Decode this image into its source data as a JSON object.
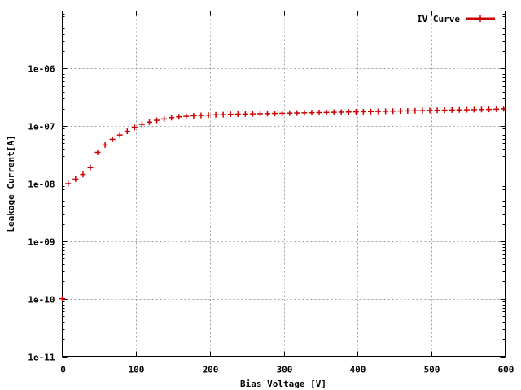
{
  "chart_data": {
    "type": "scatter",
    "xlabel": "Bias Voltage [V]",
    "ylabel": "Leakage Current[A]",
    "xlim": [
      0,
      600
    ],
    "ylim": [
      1e-11,
      1e-05
    ],
    "yscale": "log",
    "grid": true,
    "legend_position": "top-right",
    "x_ticks": [
      0,
      100,
      200,
      300,
      400,
      500,
      600
    ],
    "x_tick_labels": [
      "0",
      "100",
      "200",
      "300",
      "400",
      "500",
      "600"
    ],
    "y_ticks": [
      1e-11,
      1e-10,
      1e-09,
      1e-08,
      1e-07,
      1e-06
    ],
    "y_tick_labels": [
      "1e-11",
      "1e-10",
      "1e-09",
      "1e-08",
      "1e-07",
      "1e-06"
    ],
    "series": [
      {
        "name": "IV Curve",
        "color": "#cc0000",
        "marker": "plus",
        "x": [
          0,
          8,
          18,
          28,
          38,
          48,
          58,
          68,
          78,
          88,
          98,
          108,
          118,
          128,
          138,
          148,
          158,
          168,
          178,
          188,
          198,
          208,
          218,
          228,
          238,
          248,
          258,
          268,
          278,
          288,
          298,
          308,
          318,
          328,
          338,
          348,
          358,
          368,
          378,
          388,
          398,
          408,
          418,
          428,
          438,
          448,
          458,
          468,
          478,
          488,
          498,
          508,
          518,
          528,
          538,
          548,
          558,
          568,
          578,
          588,
          598
        ],
        "y": [
          1e-10,
          1e-08,
          1.2e-08,
          1.45e-08,
          1.9e-08,
          3.5e-08,
          4.7e-08,
          5.9e-08,
          7e-08,
          8.1e-08,
          9.5e-08,
          1.07e-07,
          1.17e-07,
          1.26e-07,
          1.33e-07,
          1.4e-07,
          1.45e-07,
          1.48e-07,
          1.51e-07,
          1.53e-07,
          1.55e-07,
          1.57e-07,
          1.58e-07,
          1.6e-07,
          1.61e-07,
          1.62e-07,
          1.63e-07,
          1.64e-07,
          1.65e-07,
          1.66e-07,
          1.67e-07,
          1.68e-07,
          1.69e-07,
          1.7e-07,
          1.71e-07,
          1.72e-07,
          1.73e-07,
          1.74e-07,
          1.75e-07,
          1.76e-07,
          1.77e-07,
          1.78e-07,
          1.79e-07,
          1.8e-07,
          1.81e-07,
          1.82e-07,
          1.83e-07,
          1.84e-07,
          1.85e-07,
          1.86e-07,
          1.87e-07,
          1.88e-07,
          1.89e-07,
          1.9e-07,
          1.91e-07,
          1.92e-07,
          1.93e-07,
          1.94e-07,
          1.95e-07,
          1.97e-07,
          2e-07
        ]
      }
    ]
  }
}
